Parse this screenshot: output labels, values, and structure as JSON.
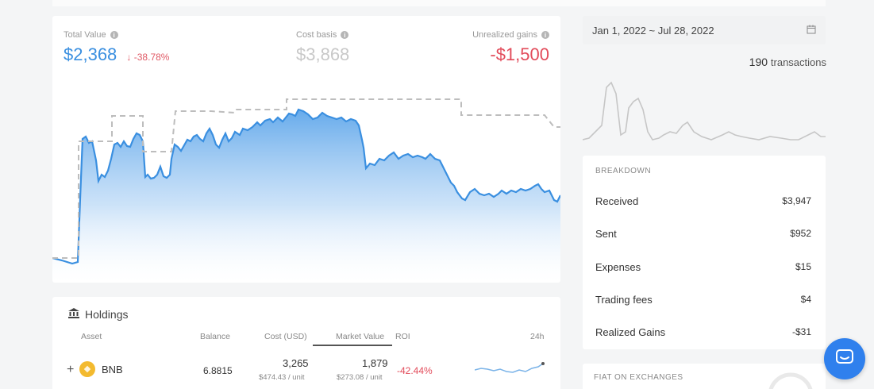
{
  "summary": {
    "total_value_label": "Total Value",
    "total_value": "$2,368",
    "total_change": "-38.78%",
    "cost_basis_label": "Cost basis",
    "cost_basis": "$3,868",
    "unrealized_label": "Unrealized gains",
    "unrealized": "-$1,500"
  },
  "date_range": "Jan 1, 2022 ~ Jul 28, 2022",
  "transactions": {
    "count": "190",
    "label": "transactions"
  },
  "breakdown": {
    "title": "BREAKDOWN",
    "rows": [
      {
        "label": "Received",
        "value": "$3,947"
      },
      {
        "label": "Sent",
        "value": "$952"
      },
      {
        "label": "Expenses",
        "value": "$15"
      },
      {
        "label": "Trading fees",
        "value": "$4"
      },
      {
        "label": "Realized Gains",
        "value": "-$31"
      }
    ]
  },
  "holdings": {
    "title": "Holdings",
    "columns": [
      "Asset",
      "Balance",
      "Cost (USD)",
      "Market Value",
      "ROI",
      "24h"
    ],
    "rows": [
      {
        "asset": "BNB",
        "balance": "6.8815",
        "cost": "3,265",
        "cost_unit": "$474.43 / unit",
        "market_value": "1,879",
        "market_unit": "$273.08 / unit",
        "roi": "-42.44%"
      }
    ]
  },
  "fiat_title": "FIAT ON EXCHANGES",
  "colors": {
    "accent": "#3a8fe0",
    "negative": "#e24b5a",
    "muted": "#c8c8c8"
  }
}
